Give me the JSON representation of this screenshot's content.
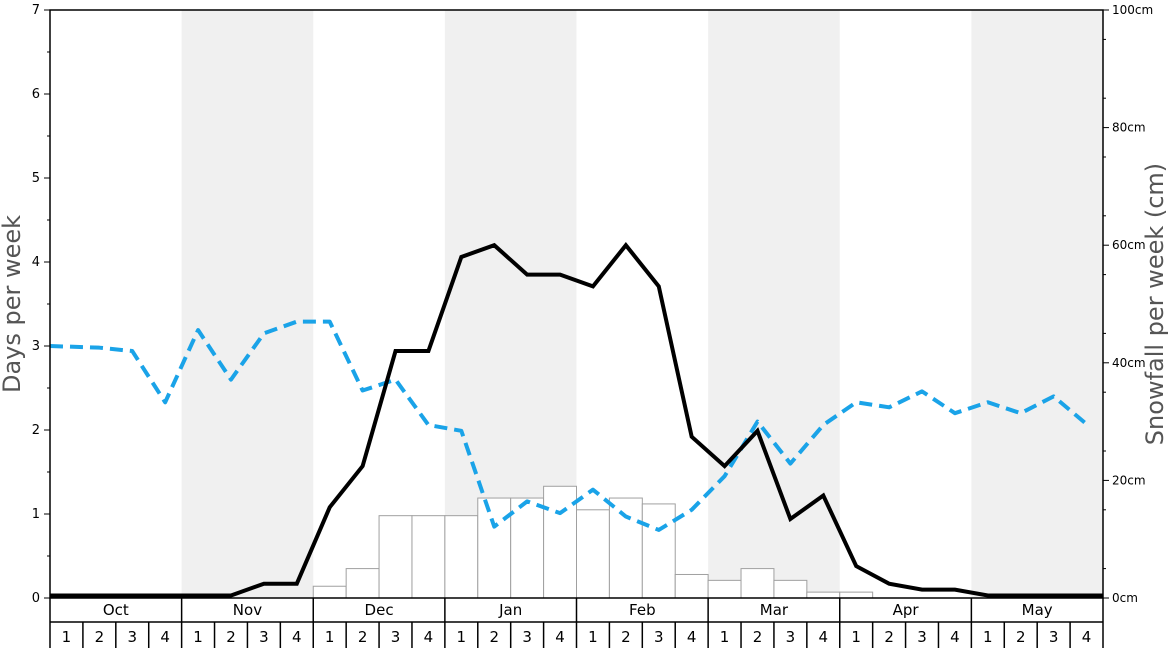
{
  "chart_data": {
    "type": "line",
    "ylabel_left": "Days per week",
    "ylabel_right": "Snowfall per week (cm)",
    "ylim_left": [
      0,
      7
    ],
    "ylim_right": [
      0,
      100
    ],
    "left_ticks": [
      "0",
      "1",
      "2",
      "3",
      "4",
      "5",
      "6",
      "7"
    ],
    "right_ticks": [
      "0cm",
      "20cm",
      "40cm",
      "60cm",
      "80cm",
      "100cm"
    ],
    "months": [
      "Oct",
      "Nov",
      "Dec",
      "Jan",
      "Feb",
      "Mar",
      "Apr",
      "May"
    ],
    "weeks": [
      "1",
      "2",
      "3",
      "4"
    ],
    "shaded_months": [
      "Nov",
      "Jan",
      "Mar",
      "May"
    ],
    "colors": {
      "snow_days_line": "#000000",
      "sunny_days_line": "#1aa3e8",
      "snowfall_bar_fill": "#ffffff",
      "snowfall_bar_stroke": "#a0a0a0",
      "shade": "#f0f0f0"
    },
    "series": [
      {
        "style": "solid-black",
        "axis": "left",
        "values": [
          0.03,
          0.03,
          0.03,
          0.03,
          0.03,
          0.03,
          0.17,
          0.17,
          1.08,
          1.57,
          2.94,
          2.94,
          4.06,
          4.2,
          3.85,
          3.85,
          3.71,
          4.2,
          3.71,
          1.92,
          1.57,
          1.99,
          0.94,
          1.22,
          0.38,
          0.17,
          0.1,
          0.1,
          0.03,
          0.03,
          0.03,
          0.03
        ]
      },
      {
        "style": "dashed-blue",
        "axis": "left",
        "values": [
          3.0,
          2.98,
          2.94,
          2.33,
          3.19,
          2.6,
          3.15,
          3.29,
          3.29,
          2.47,
          2.6,
          2.06,
          1.99,
          0.85,
          1.15,
          1.01,
          1.29,
          0.97,
          0.81,
          1.05,
          1.45,
          2.1,
          1.6,
          2.06,
          2.33,
          2.27,
          2.46,
          2.2,
          2.33,
          2.2,
          2.4,
          2.07
        ]
      },
      {
        "style": "bars",
        "axis": "right",
        "values": [
          0,
          0,
          0,
          0,
          0,
          0,
          0,
          0,
          2,
          5,
          14,
          14,
          14,
          17,
          17,
          19,
          15,
          17,
          16,
          4,
          3,
          5,
          3,
          1,
          1,
          0,
          0,
          0,
          0,
          0,
          0,
          0
        ]
      }
    ]
  }
}
